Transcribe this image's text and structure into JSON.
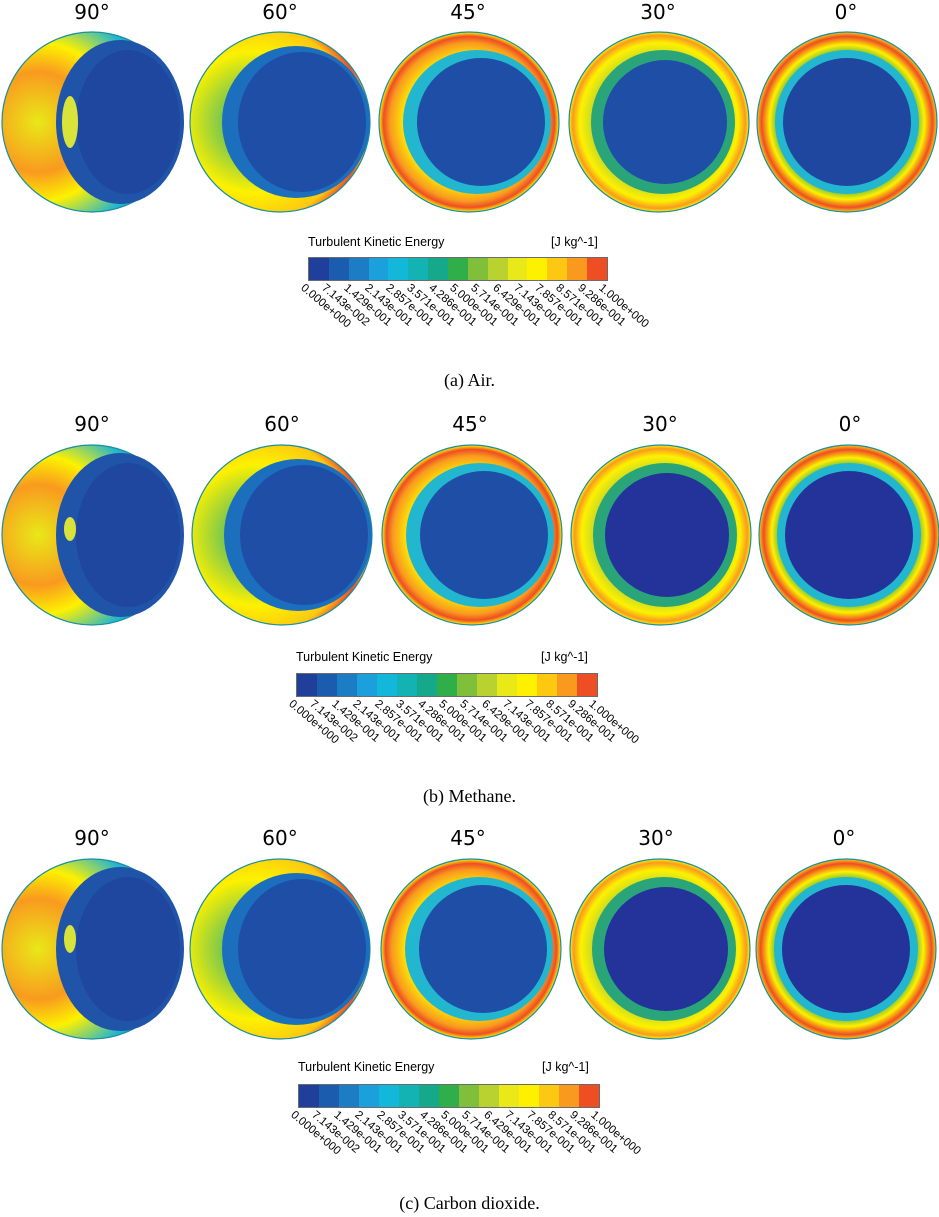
{
  "panels": [
    {
      "angles": [
        "90°",
        "60°",
        "45°",
        "30°",
        "0°"
      ],
      "legend_title": "Turbulent Kinetic Energy",
      "legend_unit": "[J kg^-1]",
      "ticks": [
        "0.000e+000",
        "7.143e-002",
        "1.429e-001",
        "2.143e-001",
        "2.857e-001",
        "3.571e-001",
        "4.286e-001",
        "5.000e-001",
        "5.714e-001",
        "6.429e-001",
        "7.143e-001",
        "7.857e-001",
        "8.571e-001",
        "9.286e-001",
        "1.000e+000"
      ],
      "caption": "(a) Air."
    },
    {
      "angles": [
        "90°",
        "60°",
        "45°",
        "30°",
        "0°"
      ],
      "legend_title": "Turbulent Kinetic Energy",
      "legend_unit": "[J kg^-1]",
      "ticks": [
        "0.000e+000",
        "7.143e-002",
        "1.429e-001",
        "2.143e-001",
        "2.857e-001",
        "3.571e-001",
        "4.286e-001",
        "5.000e-001",
        "5.714e-001",
        "6.429e-001",
        "7.143e-001",
        "7.857e-001",
        "8.571e-001",
        "9.286e-001",
        "1.000e+000"
      ],
      "caption": "(b) Methane."
    },
    {
      "angles": [
        "90°",
        "60°",
        "45°",
        "30°",
        "0°"
      ],
      "legend_title": "Turbulent Kinetic Energy",
      "legend_unit": "[J kg^-1]",
      "ticks": [
        "0.000e+000",
        "7.143e-002",
        "1.429e-001",
        "2.143e-001",
        "2.857e-001",
        "3.571e-001",
        "4.286e-001",
        "5.000e-001",
        "5.714e-001",
        "6.429e-001",
        "7.143e-001",
        "7.857e-001",
        "8.571e-001",
        "9.286e-001",
        "1.000e+000"
      ],
      "caption": "(c) Carbon dioxide."
    }
  ],
  "colormap": [
    "#1f3f9b",
    "#1c5cae",
    "#1c7cc4",
    "#1ca0dc",
    "#12b7d9",
    "#14b3b3",
    "#16a88a",
    "#2fae4a",
    "#7fbf3a",
    "#b9d230",
    "#e9e818",
    "#fdf100",
    "#fcc812",
    "#f99a1f",
    "#ee4e24"
  ]
}
